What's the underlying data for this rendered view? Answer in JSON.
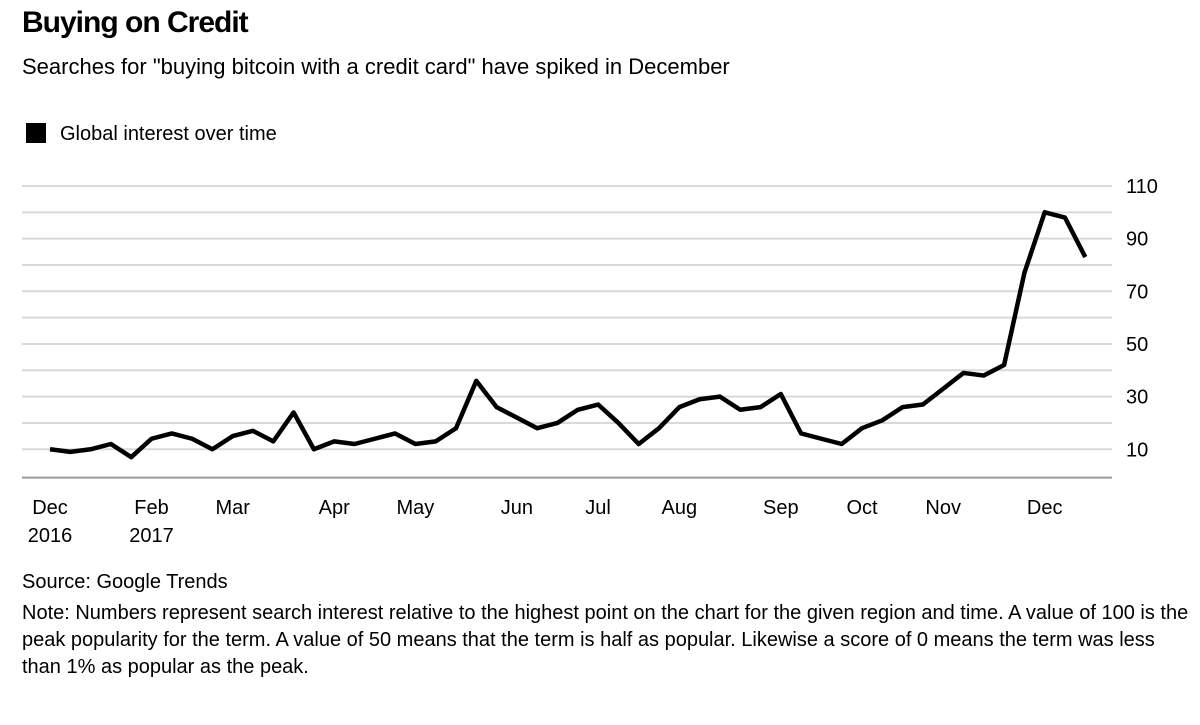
{
  "chart_data": {
    "type": "line",
    "title": "Buying on Credit",
    "subtitle": "Searches for \"buying bitcoin with a credit card\" have spiked in December",
    "categories": [
      "Dec 2016",
      null,
      null,
      null,
      null,
      "Feb 2017",
      null,
      null,
      null,
      "Mar",
      null,
      null,
      null,
      null,
      "Apr",
      null,
      null,
      null,
      "May",
      null,
      null,
      null,
      null,
      "Jun",
      null,
      null,
      null,
      "Jul",
      null,
      null,
      null,
      "Aug",
      null,
      null,
      null,
      null,
      "Sep",
      null,
      null,
      null,
      "Oct",
      null,
      null,
      null,
      "Nov",
      null,
      null,
      null,
      null,
      "Dec",
      null,
      null
    ],
    "series": [
      {
        "name": "Global interest over time",
        "color": "#000000",
        "values": [
          10,
          9,
          10,
          12,
          7,
          14,
          16,
          14,
          10,
          15,
          17,
          13,
          24,
          10,
          13,
          12,
          14,
          16,
          12,
          13,
          18,
          36,
          26,
          22,
          18,
          20,
          25,
          27,
          20,
          12,
          18,
          26,
          29,
          30,
          25,
          26,
          31,
          16,
          14,
          12,
          18,
          21,
          26,
          27,
          33,
          39,
          38,
          42,
          77,
          100,
          98,
          83
        ]
      }
    ],
    "ylim": [
      0,
      110
    ],
    "yticks": [
      10,
      30,
      50,
      70,
      90,
      110
    ],
    "minor_yticks": [
      20,
      40,
      60,
      80,
      100
    ],
    "grid": true,
    "source": "Source: Google Trends",
    "note": "Note: Numbers represent search interest relative to the highest point on the chart for the given region and time. A value of 100 is the peak popularity for the term. A value of 50 means that the term is half as popular. Likewise a score of 0 means the term was less than 1% as popular as the peak."
  }
}
